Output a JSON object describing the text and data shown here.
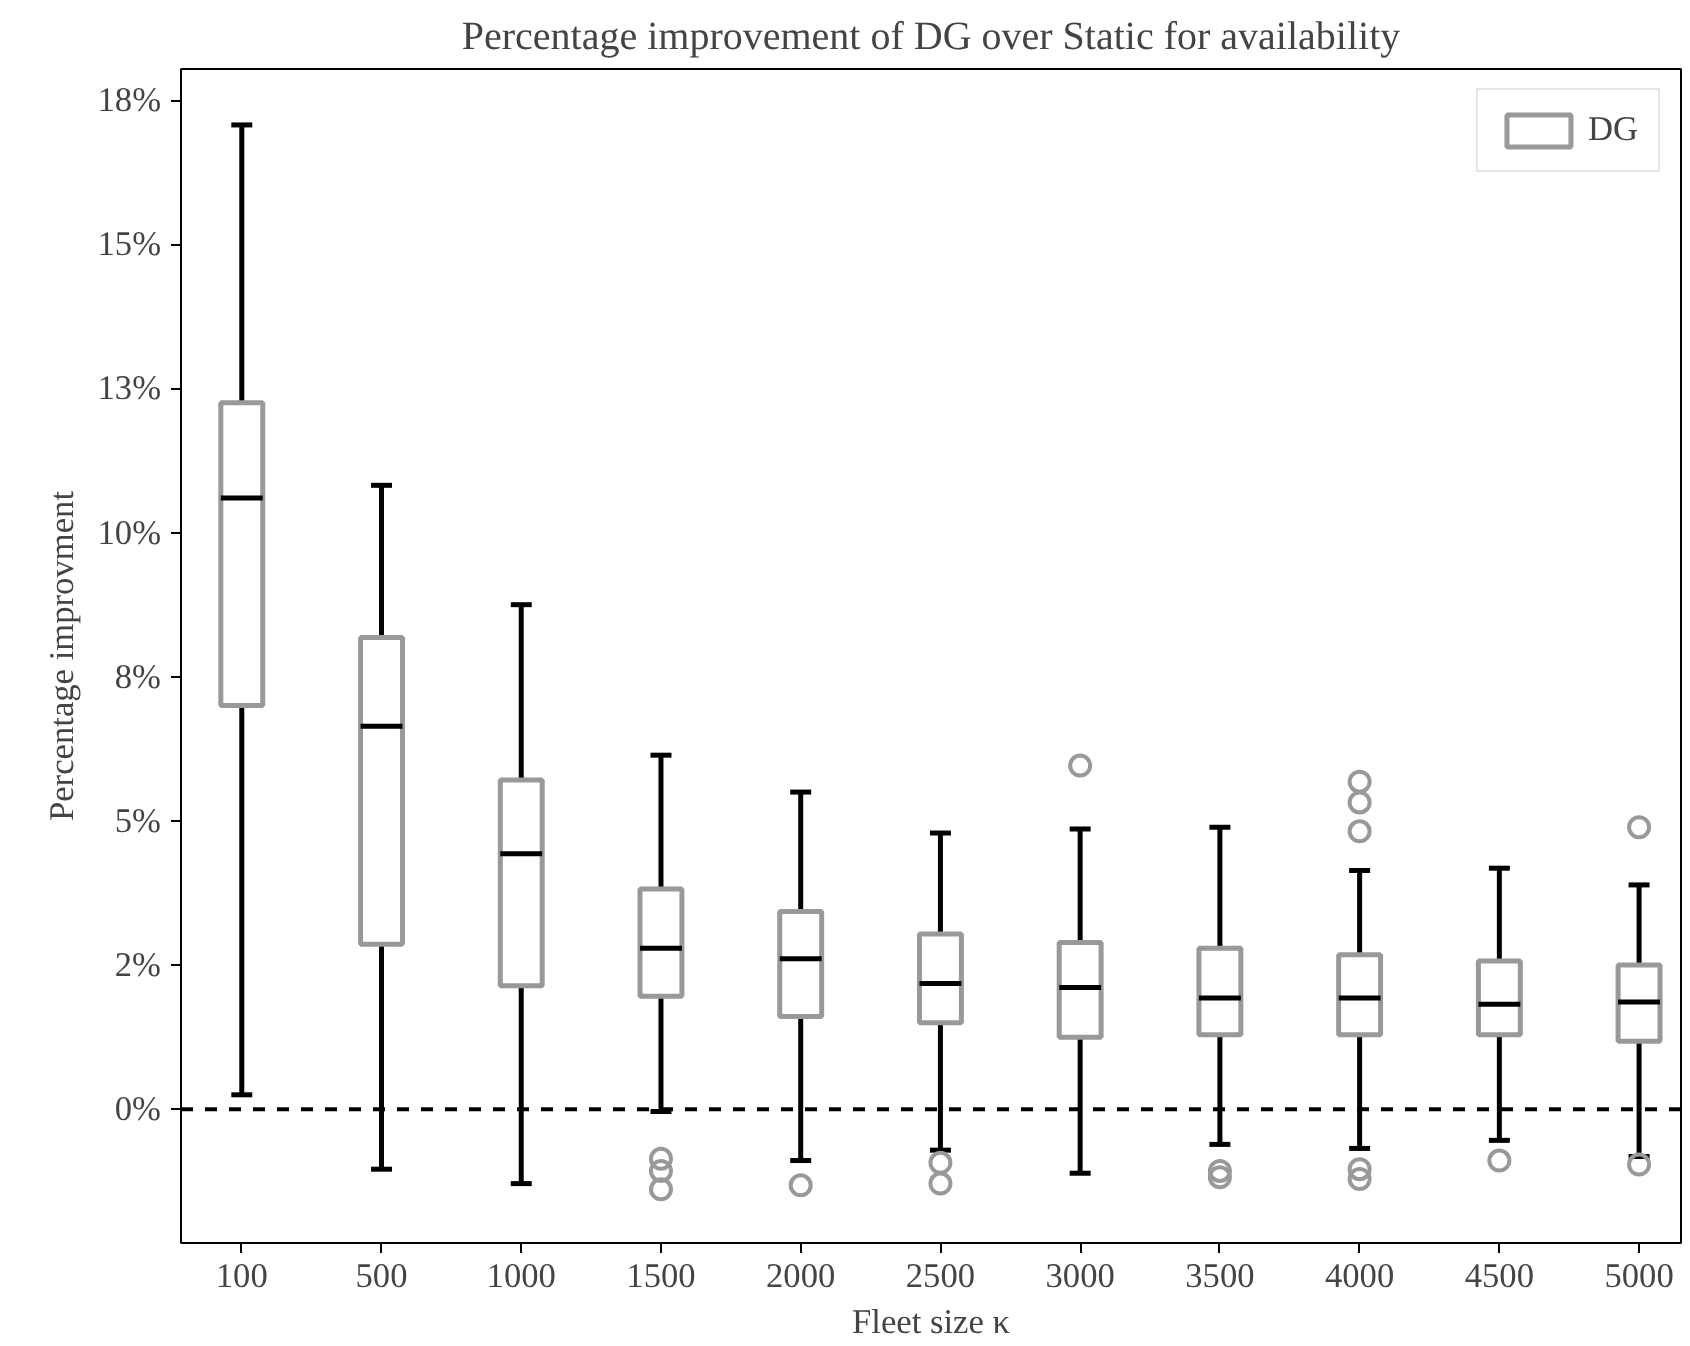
{
  "chart_data": {
    "type": "box",
    "title": "Percentage improvement of DG over Static for availability",
    "xlabel": "Fleet size κ",
    "ylabel": "Percentage improvment",
    "categories": [
      "100",
      "500",
      "1000",
      "1500",
      "2000",
      "2500",
      "3000",
      "3500",
      "4000",
      "4500",
      "5000"
    ],
    "series": [
      {
        "name": "DG",
        "color": "#999999",
        "boxes": [
          {
            "low": 0.25,
            "q1": 7.0,
            "median": 10.6,
            "q3": 12.25,
            "high": 17.07
          },
          {
            "low": -1.04,
            "q1": 2.86,
            "median": 6.64,
            "q3": 8.18,
            "high": 10.82
          },
          {
            "low": -1.29,
            "q1": 2.14,
            "median": 4.43,
            "q3": 5.71,
            "high": 8.75
          },
          {
            "low": -0.04,
            "q1": 1.96,
            "median": 2.79,
            "q3": 3.82,
            "high": 6.14,
            "outliers": [
              -0.86,
              -1.07,
              -1.39
            ]
          },
          {
            "low": -0.89,
            "q1": 1.61,
            "median": 2.61,
            "q3": 3.43,
            "high": 5.5,
            "outliers": [
              -1.32
            ]
          },
          {
            "low": -0.71,
            "q1": 1.5,
            "median": 2.18,
            "q3": 3.04,
            "high": 4.79,
            "outliers": [
              -0.93,
              -1.29
            ]
          },
          {
            "low": -1.11,
            "q1": 1.25,
            "median": 2.11,
            "q3": 2.89,
            "high": 4.86,
            "outliers": [
              5.96
            ]
          },
          {
            "low": -0.61,
            "q1": 1.29,
            "median": 1.93,
            "q3": 2.79,
            "high": 4.89,
            "outliers": [
              -1.07,
              -1.18
            ]
          },
          {
            "low": -0.68,
            "q1": 1.29,
            "median": 1.93,
            "q3": 2.68,
            "high": 4.14,
            "outliers": [
              5.68,
              5.32,
              4.82,
              -1.04,
              -1.21
            ]
          },
          {
            "low": -0.54,
            "q1": 1.29,
            "median": 1.82,
            "q3": 2.57,
            "high": 4.18,
            "outliers": [
              -0.89
            ]
          },
          {
            "low": -0.82,
            "q1": 1.18,
            "median": 1.86,
            "q3": 2.5,
            "high": 3.89,
            "outliers": [
              4.89,
              -0.96
            ]
          }
        ]
      }
    ],
    "ylim": [
      -2.32,
      18.04
    ],
    "yticks": [
      {
        "value": 0,
        "label": "0%"
      },
      {
        "value": 2.5,
        "label": "2%"
      },
      {
        "value": 5,
        "label": "5%"
      },
      {
        "value": 7.5,
        "label": "8%"
      },
      {
        "value": 10,
        "label": "10%"
      },
      {
        "value": 12.5,
        "label": "13%"
      },
      {
        "value": 15,
        "label": "15%"
      },
      {
        "value": 17.5,
        "label": "18%"
      }
    ],
    "ref_lines": [
      {
        "axis": "y",
        "value": 0,
        "label": null,
        "color": "#000000",
        "line_style": "dashed"
      }
    ],
    "grid": false,
    "legend": "top right"
  }
}
